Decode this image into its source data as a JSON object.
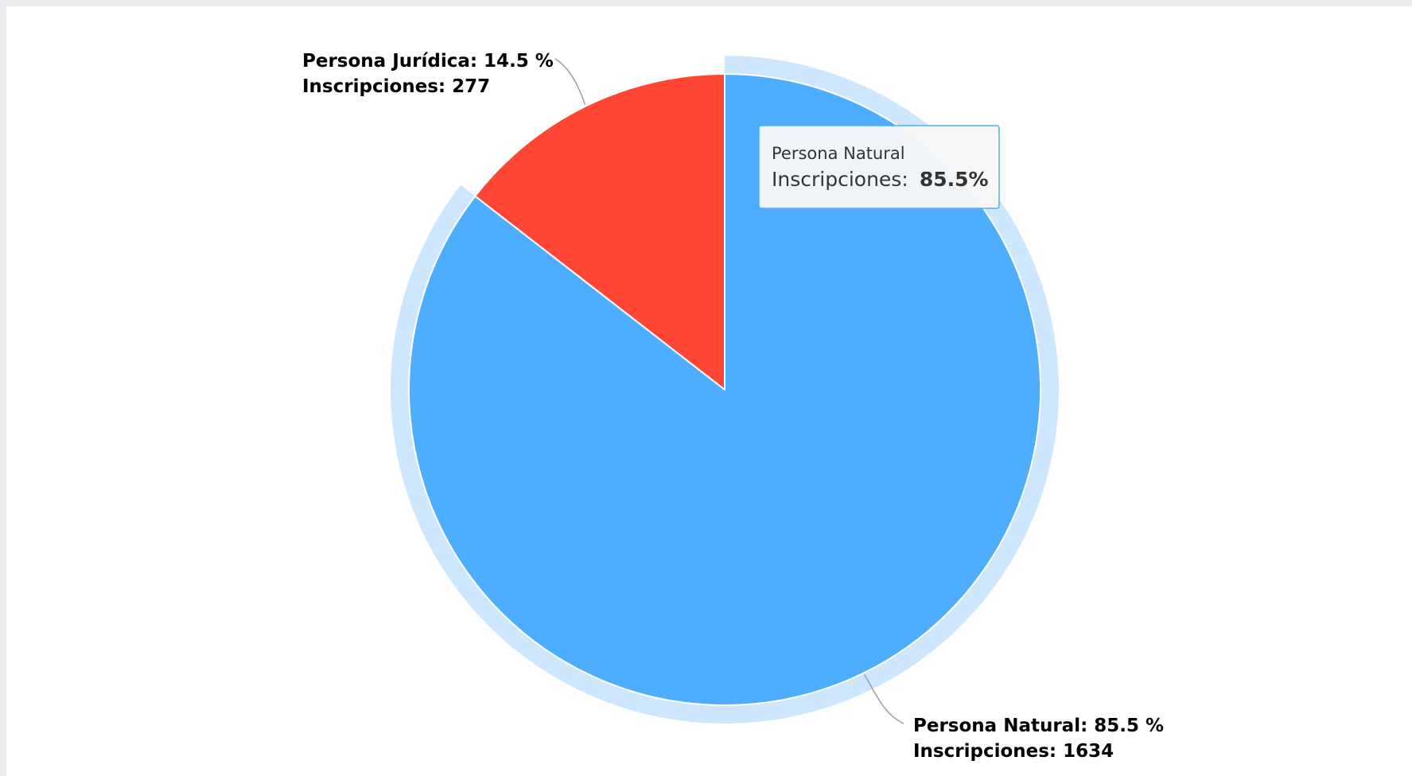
{
  "chart_data": {
    "type": "pie",
    "title": "",
    "start_angle_deg": 0,
    "hovered_index": 0,
    "slices": [
      {
        "name": "Persona Natural",
        "percent": 85.5,
        "percent_text": "85.5 %",
        "inscripciones": 1634,
        "color": "#4dadff",
        "label_line1": "Persona Natural: 85.5 %",
        "label_line2": "Inscripciones: 1634"
      },
      {
        "name": "Persona Jurídica",
        "percent": 14.5,
        "percent_text": "14.5 %",
        "inscripciones": 277,
        "color": "#ff4533",
        "label_line1": "Persona Jurídica: 14.5 %",
        "label_line2": "Inscripciones: 277"
      }
    ],
    "tooltip": {
      "series_name": "Persona Natural",
      "label": "Inscripciones:",
      "value": "85.5%"
    },
    "halo_color": "#cfe6ff",
    "connector_color": "#999999"
  }
}
